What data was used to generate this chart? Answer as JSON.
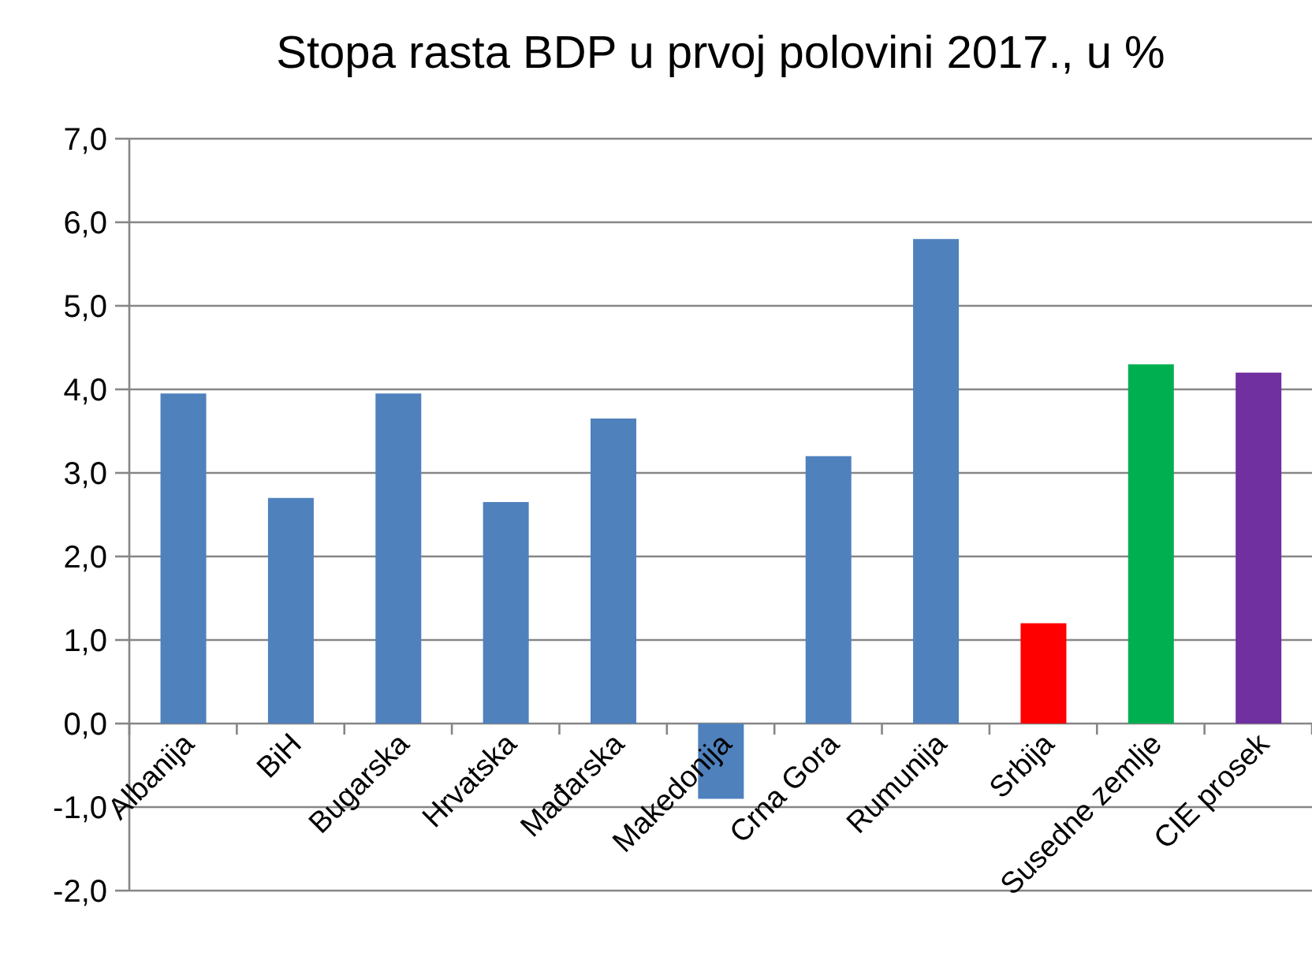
{
  "chart_data": {
    "type": "bar",
    "title": "Stopa rasta BDP u prvoj polovini 2017., u %",
    "categories": [
      "Albanija",
      "BiH",
      "Bugarska",
      "Hrvatska",
      "Mađarska",
      "Makedonija",
      "Crna Gora",
      "Rumunija",
      "Srbija",
      "Susedne zemlje",
      "CIE prosek"
    ],
    "values": [
      3.95,
      2.7,
      3.95,
      2.65,
      3.65,
      -0.9,
      3.2,
      5.8,
      1.2,
      4.3,
      4.2
    ],
    "colors": [
      "#4f81bd",
      "#4f81bd",
      "#4f81bd",
      "#4f81bd",
      "#4f81bd",
      "#4f81bd",
      "#4f81bd",
      "#4f81bd",
      "#ff0000",
      "#00b050",
      "#7030a0"
    ],
    "ylim": [
      -2,
      7
    ],
    "yticks": [
      {
        "value": -2,
        "label": "-2,0"
      },
      {
        "value": -1,
        "label": "-1,0"
      },
      {
        "value": 0,
        "label": "0,0"
      },
      {
        "value": 1,
        "label": "1,0"
      },
      {
        "value": 2,
        "label": "2,0"
      },
      {
        "value": 3,
        "label": "3,0"
      },
      {
        "value": 4,
        "label": "4,0"
      },
      {
        "value": 5,
        "label": "5,0"
      },
      {
        "value": 6,
        "label": "6,0"
      },
      {
        "value": 7,
        "label": "7,0"
      }
    ],
    "grid": "y"
  }
}
